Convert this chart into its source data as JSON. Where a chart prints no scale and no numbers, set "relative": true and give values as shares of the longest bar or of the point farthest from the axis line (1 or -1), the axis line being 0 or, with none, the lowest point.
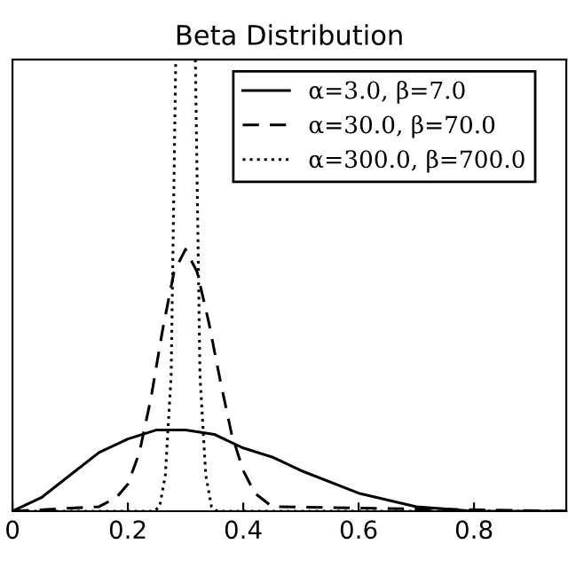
{
  "chart_data": {
    "type": "line",
    "title": "Beta Distribution",
    "relative": true,
    "xlim": [
      0,
      0.96
    ],
    "xticks": [
      0,
      0.2,
      0.4,
      0.6,
      0.8
    ],
    "legend": "top right",
    "grid": false,
    "marker": "none",
    "series": [
      {
        "name": "α=3.0, β=7.0",
        "color": "#000000",
        "line_style": "solid",
        "x": [
          0,
          0.05,
          0.1,
          0.15,
          0.2,
          0.25,
          0.3,
          0.35,
          0.4,
          0.45,
          0.5,
          0.6,
          0.7,
          0.8,
          0.9,
          0.96
        ],
        "values": [
          0,
          0.03,
          0.08,
          0.13,
          0.16,
          0.18,
          0.18,
          0.17,
          0.14,
          0.12,
          0.09,
          0.04,
          0.01,
          0,
          0,
          0
        ]
      },
      {
        "name": "α=30.0, β=70.0",
        "color": "#000000",
        "line_style": "dashed",
        "x": [
          0,
          0.15,
          0.18,
          0.2,
          0.22,
          0.24,
          0.26,
          0.28,
          0.3,
          0.32,
          0.34,
          0.36,
          0.38,
          0.4,
          0.42,
          0.45,
          0.96
        ],
        "values": [
          0,
          0.01,
          0.03,
          0.06,
          0.13,
          0.25,
          0.4,
          0.53,
          0.58,
          0.53,
          0.42,
          0.29,
          0.17,
          0.09,
          0.04,
          0.01,
          0
        ]
      },
      {
        "name": "α=300.0, β=700.0",
        "color": "#000000",
        "line_style": "dotted",
        "x": [
          0,
          0.245,
          0.255,
          0.265,
          0.275,
          0.283,
          0.3,
          0.317,
          0.325,
          0.335,
          0.345,
          0.355,
          0.96
        ],
        "values": [
          0,
          0,
          0.01,
          0.08,
          0.3,
          1,
          null,
          1,
          0.3,
          0.08,
          0.01,
          0,
          0
        ]
      }
    ]
  }
}
